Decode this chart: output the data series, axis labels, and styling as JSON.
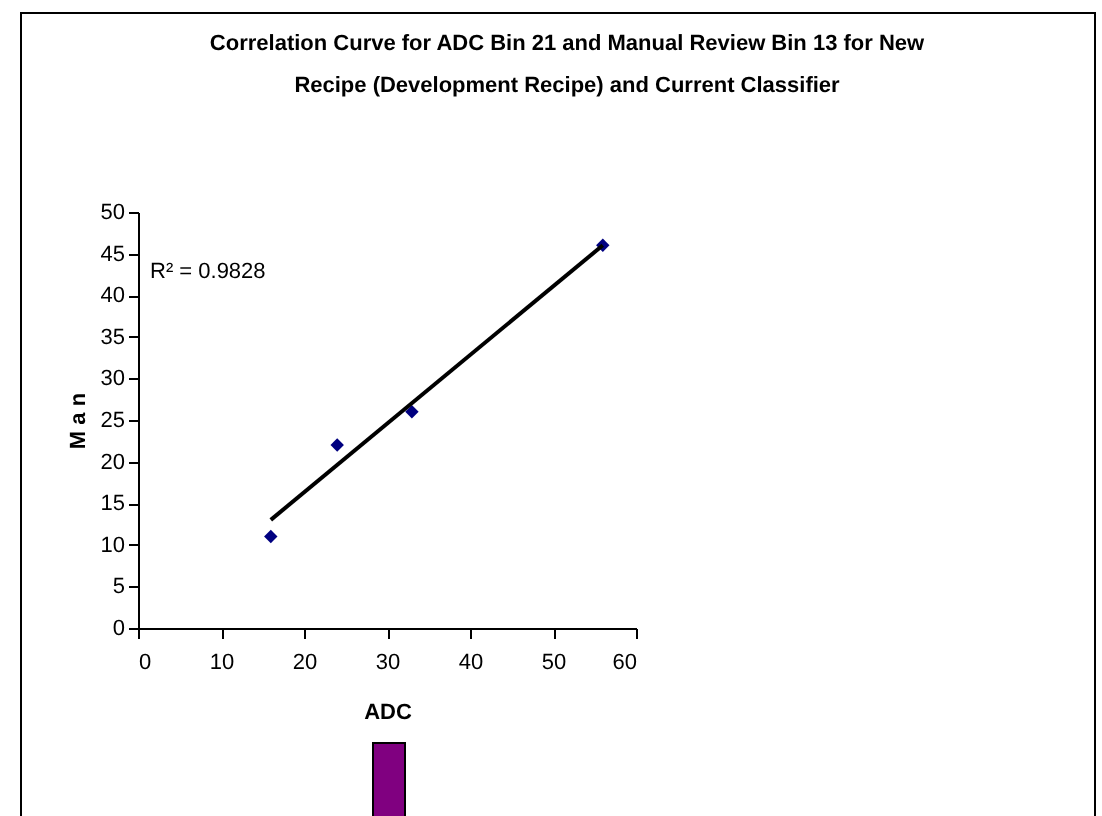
{
  "chart_data": {
    "type": "scatter",
    "title": "Correlation Curve for ADC Bin 21 and Manual Review Bin 13 for New Recipe (Development Recipe) and Current Classifier",
    "xlabel": "ADC",
    "ylabel": "M a n",
    "x": [
      16,
      24,
      33,
      56
    ],
    "series": [
      {
        "color": "#000080",
        "values": [
          11,
          22,
          26,
          46
        ],
        "marker": "diamond"
      },
      {
        "type": "line",
        "color": "#000000",
        "x": [
          16,
          56
        ],
        "values": [
          13,
          46
        ],
        "marker": "none"
      }
    ],
    "annotations": [
      "R² = 0.9828"
    ],
    "xlim": [
      0,
      60
    ],
    "xticks": [
      0,
      10,
      20,
      30,
      40,
      50,
      60
    ],
    "ylim": [
      0,
      50
    ],
    "yticks": [
      0,
      5,
      10,
      15,
      20,
      25,
      30,
      35,
      40,
      45,
      50
    ]
  }
}
